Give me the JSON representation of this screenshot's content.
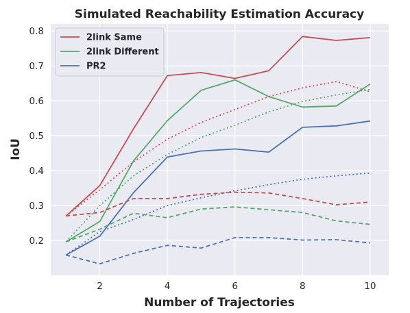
{
  "chart_data": {
    "type": "line",
    "title": "Simulated Reachability Estimation Accuracy",
    "xlabel": "Number of Trajectories",
    "ylabel": "IoU",
    "x": [
      1,
      2,
      3,
      4,
      5,
      6,
      7,
      8,
      9,
      10
    ],
    "xticks": [
      2,
      4,
      6,
      8,
      10
    ],
    "yticks": [
      0.2,
      0.3,
      0.4,
      0.5,
      0.6,
      0.7,
      0.8
    ],
    "xlim": [
      0.55,
      10.55
    ],
    "ylim": [
      0.1,
      0.82
    ],
    "grid": true,
    "legend_position": "top-left",
    "series": [
      {
        "name": "2link Same",
        "color": "#c44e52",
        "style": "solid",
        "values": [
          0.27,
          0.357,
          0.52,
          0.672,
          0.681,
          0.664,
          0.686,
          0.784,
          0.773,
          0.781
        ]
      },
      {
        "name": "2link Different",
        "color": "#55a868",
        "style": "solid",
        "values": [
          0.196,
          0.254,
          0.428,
          0.543,
          0.63,
          0.66,
          0.612,
          0.582,
          0.585,
          0.648
        ]
      },
      {
        "name": "PR2",
        "color": "#4c72b0",
        "style": "solid",
        "values": [
          0.158,
          0.212,
          0.337,
          0.439,
          0.456,
          0.462,
          0.453,
          0.524,
          0.528,
          0.542
        ]
      },
      {
        "color": "#c44e52",
        "style": "dotted",
        "values": [
          0.27,
          0.345,
          0.425,
          0.49,
          0.538,
          0.575,
          0.612,
          0.637,
          0.655,
          0.626
        ]
      },
      {
        "color": "#55a868",
        "style": "dotted",
        "values": [
          0.196,
          0.3,
          0.385,
          0.446,
          0.495,
          0.53,
          0.568,
          0.598,
          0.617,
          0.632
        ]
      },
      {
        "color": "#4c72b0",
        "style": "dotted",
        "values": [
          0.158,
          0.225,
          0.26,
          0.3,
          0.322,
          0.342,
          0.36,
          0.375,
          0.385,
          0.393
        ]
      },
      {
        "color": "#c44e52",
        "style": "dashed",
        "values": [
          0.27,
          0.28,
          0.32,
          0.32,
          0.332,
          0.338,
          0.336,
          0.32,
          0.302,
          0.31
        ]
      },
      {
        "color": "#55a868",
        "style": "dashed",
        "values": [
          0.196,
          0.232,
          0.278,
          0.265,
          0.29,
          0.296,
          0.288,
          0.28,
          0.256,
          0.246
        ]
      },
      {
        "color": "#4c72b0",
        "style": "dashed",
        "values": [
          0.158,
          0.133,
          0.163,
          0.186,
          0.178,
          0.208,
          0.208,
          0.201,
          0.202,
          0.193
        ]
      }
    ]
  }
}
